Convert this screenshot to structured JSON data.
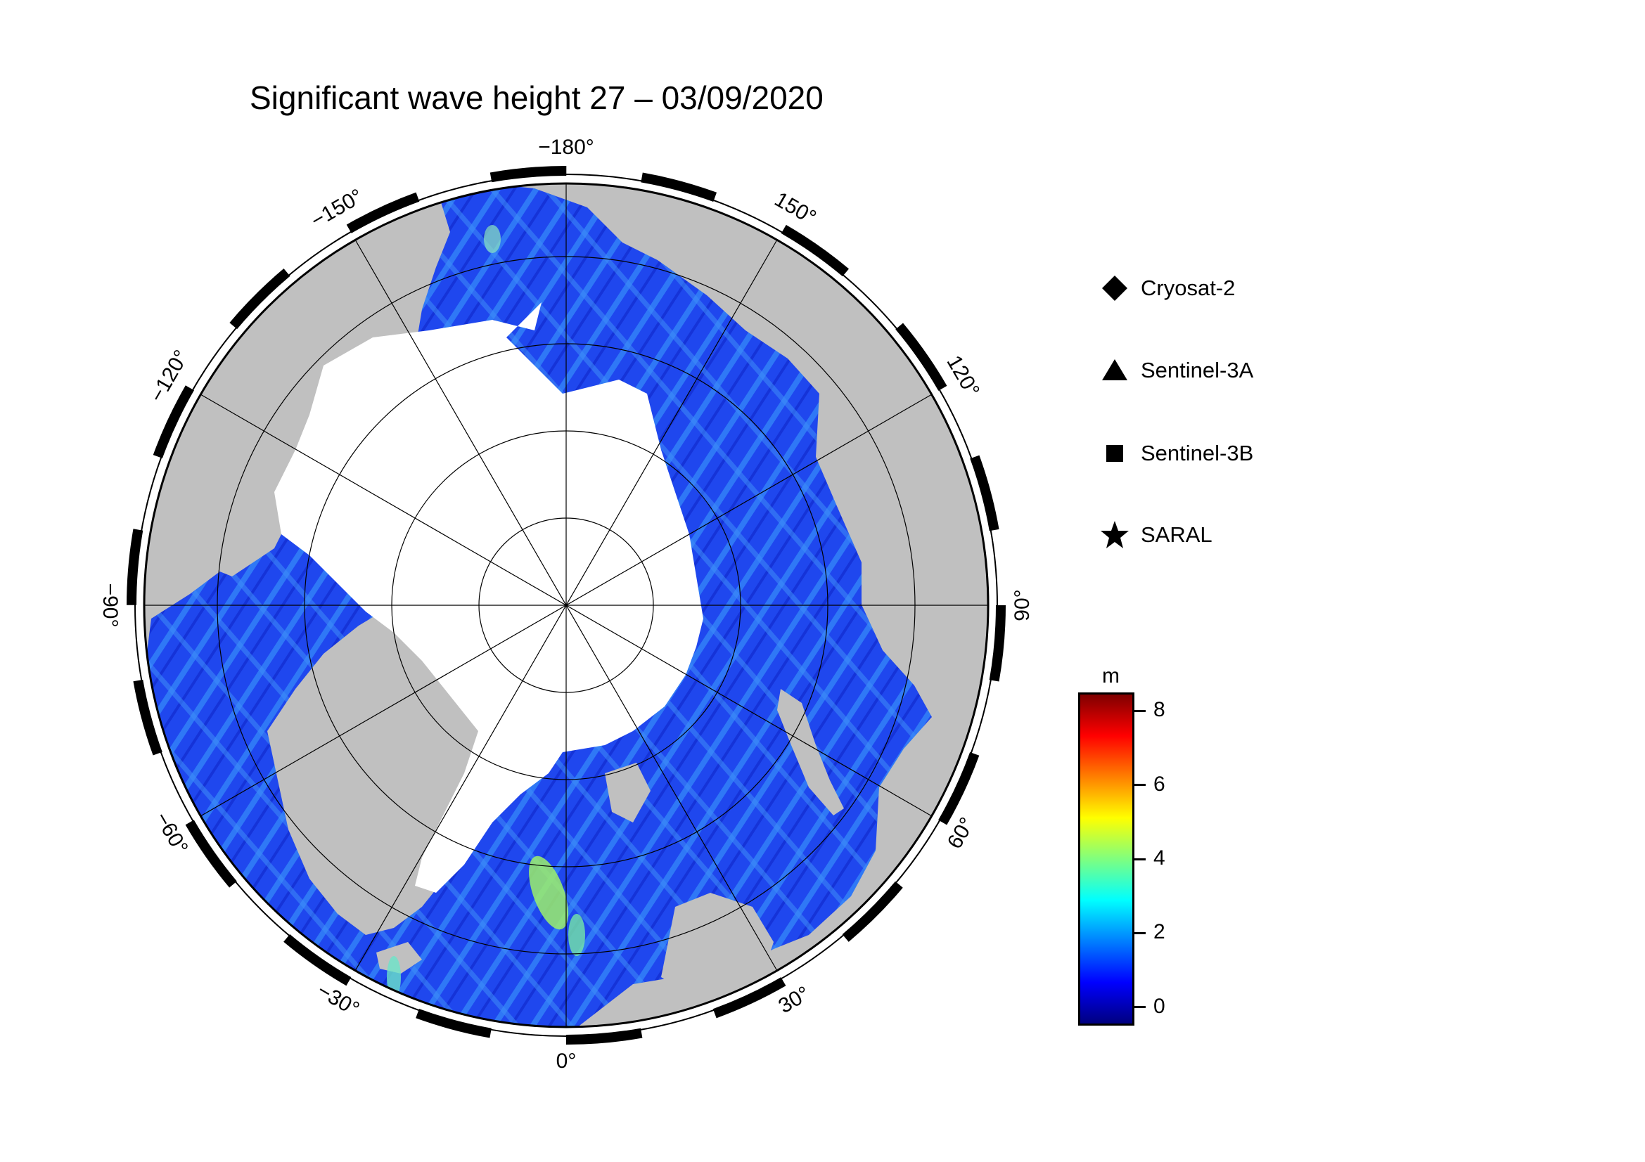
{
  "title": "Significant wave height 27 – 03/09/2020",
  "map": {
    "projection": "north polar stereographic",
    "lon_labels": [
      {
        "text": "−180°",
        "lon": 180
      },
      {
        "text": "150°",
        "lon": 150
      },
      {
        "text": "120°",
        "lon": 120
      },
      {
        "text": "90°",
        "lon": 90
      },
      {
        "text": "60°",
        "lon": 60
      },
      {
        "text": "30°",
        "lon": 30
      },
      {
        "text": "0°",
        "lon": 0
      },
      {
        "text": "−30°",
        "lon": -30
      },
      {
        "text": "−60°",
        "lon": -60
      },
      {
        "text": "−90°",
        "lon": -90
      },
      {
        "text": "−120°",
        "lon": -120
      },
      {
        "text": "−150°",
        "lon": -150
      }
    ],
    "colors": {
      "land": "#c0c0c0",
      "ice": "#ffffff",
      "ocean_low": "#1e3cf0",
      "ocean_mid": "#2aa0ff"
    }
  },
  "legend": [
    {
      "label": "Cryosat-2",
      "icon": "diamond-icon"
    },
    {
      "label": "Sentinel-3A",
      "icon": "triangle-icon"
    },
    {
      "label": "Sentinel-3B",
      "icon": "square-icon"
    },
    {
      "label": "SARAL",
      "icon": "star-icon"
    }
  ],
  "colorbar": {
    "unit": "m",
    "min": -0.5,
    "max": 8.5,
    "ticks": [
      "0",
      "2",
      "4",
      "6",
      "8"
    ],
    "colors": [
      "#00007f",
      "#0000ff",
      "#007fff",
      "#00ffff",
      "#7fff7f",
      "#ffff00",
      "#ff7f00",
      "#ff0000",
      "#7f0000"
    ]
  }
}
